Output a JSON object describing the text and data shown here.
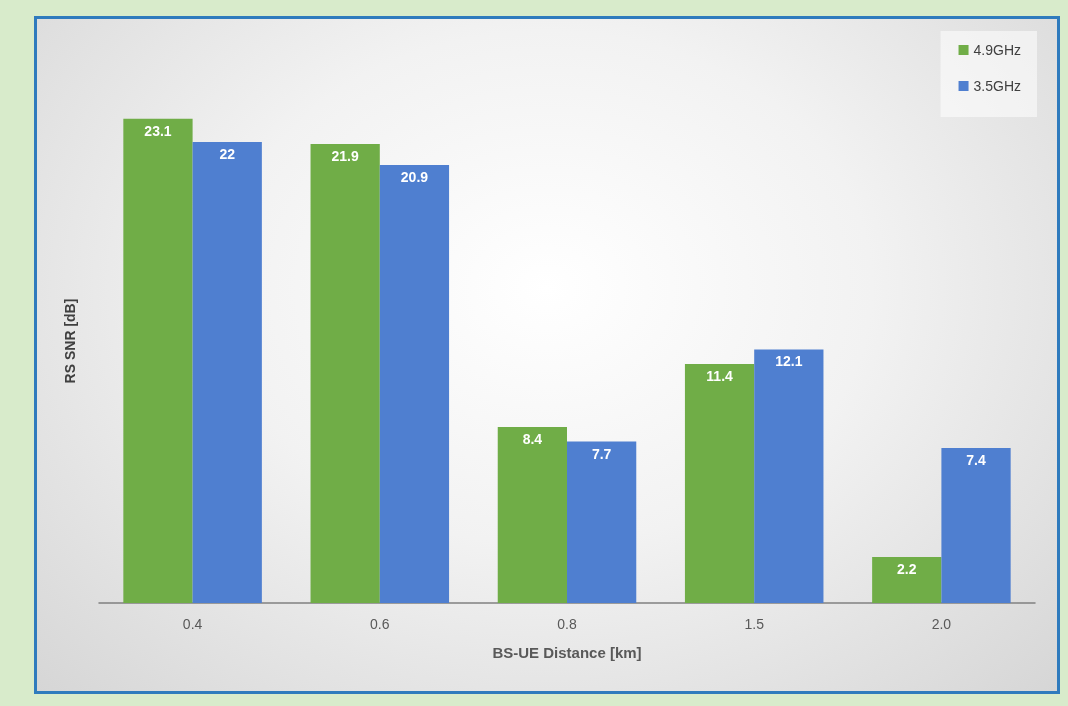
{
  "chart_data": {
    "type": "bar",
    "xlabel": "BS-UE Distance [km]",
    "ylabel": "RS SNR [dB]",
    "categories": [
      "0.4",
      "0.6",
      "0.8",
      "1.5",
      "2.0"
    ],
    "series": [
      {
        "name": "4.9GHz",
        "color": "#70ad47",
        "values": [
          23.1,
          21.9,
          8.4,
          11.4,
          2.2
        ]
      },
      {
        "name": "3.5GHz",
        "color": "#4f7fd0",
        "values": [
          22,
          20.9,
          7.7,
          12.1,
          7.4
        ]
      }
    ],
    "data_labels": true,
    "grid": false,
    "legend": "top right"
  }
}
